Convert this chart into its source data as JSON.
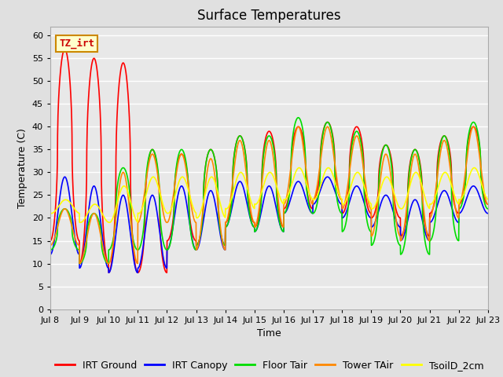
{
  "title": "Surface Temperatures",
  "xlabel": "Time",
  "ylabel": "Temperature (C)",
  "background_color": "#e0e0e0",
  "plot_bg_color": "#e8e8e8",
  "ylim": [
    0,
    62
  ],
  "yticks": [
    0,
    5,
    10,
    15,
    20,
    25,
    30,
    35,
    40,
    45,
    50,
    55,
    60
  ],
  "n_days": 15,
  "xtick_labels": [
    "Jul 8",
    "Jul 9",
    "Jul 10",
    "Jul 11",
    "Jul 12",
    "Jul 13",
    "Jul 14",
    "Jul 15",
    "Jul 16",
    "Jul 17",
    "Jul 18",
    "Jul 19",
    "Jul 20",
    "Jul 21",
    "Jul 22",
    "Jul 23"
  ],
  "series": {
    "IRT Ground": {
      "color": "#ff0000",
      "linewidth": 1.2
    },
    "IRT Canopy": {
      "color": "#0000ff",
      "linewidth": 1.2
    },
    "Floor Tair": {
      "color": "#00dd00",
      "linewidth": 1.2
    },
    "Tower TAir": {
      "color": "#ff8800",
      "linewidth": 1.2
    },
    "TsoilD_2cm": {
      "color": "#ffff00",
      "linewidth": 1.2
    }
  },
  "annotation": {
    "text": "TZ_irt",
    "fontsize": 9,
    "color": "#cc0000",
    "bg": "#ffffcc",
    "border_color": "#cc8800"
  },
  "title_fontsize": 12,
  "axis_fontsize": 9,
  "tick_fontsize": 8,
  "legend_fontsize": 9,
  "irt_ground_peaks": [
    57,
    55,
    54,
    35,
    34,
    35,
    38,
    39,
    40,
    41,
    40,
    36,
    35,
    38,
    40
  ],
  "irt_ground_nights": [
    15,
    10,
    8,
    8,
    15,
    14,
    19,
    18,
    22,
    24,
    21,
    20,
    16,
    21,
    23
  ],
  "irt_canopy_peaks": [
    29,
    27,
    25,
    25,
    27,
    26,
    28,
    27,
    28,
    29,
    27,
    25,
    24,
    26,
    27
  ],
  "irt_canopy_nights": [
    12,
    9,
    8,
    9,
    13,
    13,
    18,
    17,
    21,
    23,
    20,
    18,
    15,
    19,
    21
  ],
  "floor_peaks": [
    22,
    21,
    31,
    35,
    35,
    35,
    38,
    38,
    42,
    41,
    39,
    36,
    35,
    38,
    41
  ],
  "floor_nights": [
    13,
    10,
    13,
    13,
    13,
    14,
    18,
    17,
    21,
    21,
    17,
    14,
    12,
    15,
    22
  ],
  "tower_peaks": [
    22,
    21,
    30,
    34,
    34,
    33,
    37,
    37,
    40,
    40,
    38,
    34,
    34,
    37,
    40
  ],
  "tower_nights": [
    14,
    10,
    10,
    19,
    19,
    13,
    19,
    18,
    23,
    24,
    22,
    16,
    15,
    20,
    23
  ],
  "tsoil_peaks": [
    24,
    23,
    27,
    29,
    29,
    29,
    30,
    30,
    31,
    31,
    30,
    29,
    30,
    30,
    31
  ],
  "tsoil_nights": [
    21,
    19,
    19,
    21,
    21,
    20,
    22,
    23,
    24,
    24,
    23,
    22,
    22,
    23,
    24
  ]
}
